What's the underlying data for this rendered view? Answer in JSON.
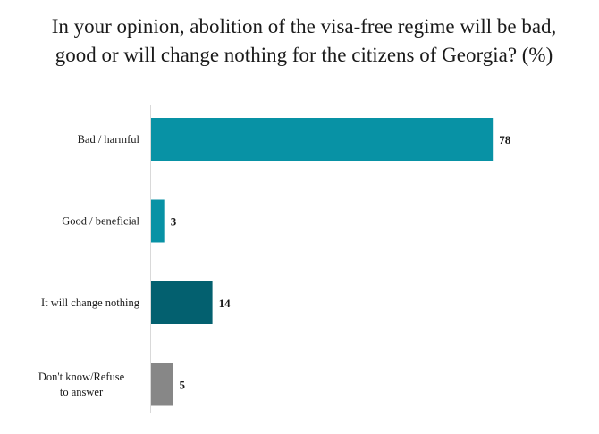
{
  "chart_data": {
    "type": "bar",
    "orientation": "horizontal",
    "title": "In your opinion, abolition of the visa-free regime will be bad, good or will change nothing for the citizens of Georgia? (%)",
    "categories": [
      "Bad / harmful",
      "Good / beneficial",
      "It will change nothing",
      "Don't know/Refuse to answer"
    ],
    "values": [
      78,
      3,
      14,
      5
    ],
    "bar_colors": [
      "#0892a5",
      "#0892a5",
      "#03606f",
      "#878787"
    ],
    "xlim": [
      0,
      100
    ],
    "grid": false,
    "legend": "none",
    "data_labels": true
  }
}
